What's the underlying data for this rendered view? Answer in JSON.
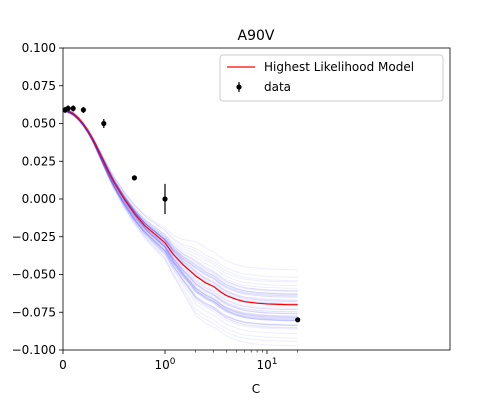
{
  "chart_data": {
    "type": "line",
    "title": "A90V",
    "xlabel": "C",
    "ylabel": "",
    "xscale": "symlog",
    "xlim": [
      0,
      20
    ],
    "ylim": [
      -0.1,
      0.1
    ],
    "grid": false,
    "x_ticks": [
      {
        "value": 0,
        "label": "0",
        "sup": ""
      },
      {
        "value": 1,
        "label": "10",
        "sup": "0"
      },
      {
        "value": 10,
        "label": "10",
        "sup": "1"
      }
    ],
    "y_ticks": [
      {
        "value": 0.1,
        "label": "0.100"
      },
      {
        "value": 0.075,
        "label": "0.075"
      },
      {
        "value": 0.05,
        "label": "0.050"
      },
      {
        "value": 0.025,
        "label": "0.025"
      },
      {
        "value": 0.0,
        "label": "0.000"
      },
      {
        "value": -0.025,
        "label": "−0.025"
      },
      {
        "value": -0.05,
        "label": "−0.050"
      },
      {
        "value": -0.075,
        "label": "−0.075"
      },
      {
        "value": -0.1,
        "label": "−0.100"
      }
    ],
    "legend": {
      "position": "top-right",
      "entries": [
        {
          "label": "Highest Likelihood Model",
          "type": "line",
          "color": "#ff0000"
        },
        {
          "label": "data",
          "type": "errorbar-marker",
          "color": "#000000"
        }
      ]
    },
    "series": [
      {
        "name": "Highest Likelihood Model",
        "type": "line",
        "color": "#ff0000",
        "x": [
          0,
          0.02,
          0.05,
          0.1,
          0.15,
          0.2,
          0.25,
          0.3,
          0.35,
          0.4,
          0.45,
          0.5,
          0.6,
          0.7,
          0.8,
          1.0,
          1.2,
          1.5,
          2.0,
          2.5,
          3.0,
          3.5,
          4.0,
          5.0,
          6.0,
          8.0,
          10.0,
          13.0,
          16.0,
          20.0
        ],
        "y": [
          0.059,
          0.0588,
          0.0582,
          0.0565,
          0.0535,
          0.0495,
          0.0445,
          0.0385,
          0.0315,
          0.0245,
          0.0175,
          0.011,
          0.0,
          -0.0095,
          -0.0175,
          -0.029,
          -0.0365,
          -0.0435,
          -0.051,
          -0.0555,
          -0.058,
          -0.0615,
          -0.064,
          -0.0665,
          -0.068,
          -0.069,
          -0.0695,
          -0.0698,
          -0.07,
          -0.07
        ]
      },
      {
        "name": "data",
        "type": "errorbar",
        "color": "#000000",
        "x": [
          0.02,
          0.05,
          0.1,
          0.2,
          0.4,
          0.7,
          1.0,
          20.0
        ],
        "y": [
          0.059,
          0.06,
          0.06,
          0.059,
          0.05,
          0.014,
          0.0,
          -0.08
        ],
        "yerr": [
          0.002,
          0.002,
          0.002,
          0.002,
          0.003,
          0.001,
          0.01,
          0.001
        ]
      }
    ],
    "posterior_band": {
      "color": "#0000ff",
      "samples": 60,
      "spread_low": 0.0008,
      "spread_high": 0.016
    }
  }
}
